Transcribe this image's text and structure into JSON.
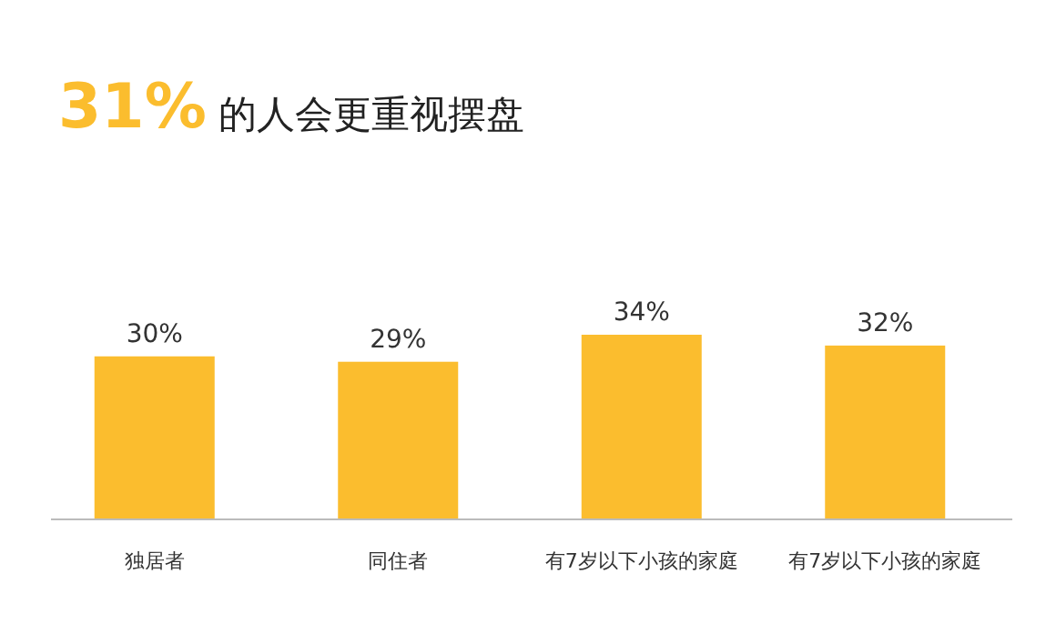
{
  "chart_data": {
    "type": "bar",
    "title": "31% 的人会更重视摆盘",
    "categories": [
      "独居者",
      "同住者",
      "有7岁以下小孩的家庭",
      "有7岁以下小孩的家庭"
    ],
    "values": [
      30,
      29,
      34,
      32
    ],
    "value_labels": [
      "30%",
      "29%",
      "34%",
      "32%"
    ],
    "color": "#fbbd2e"
  }
}
